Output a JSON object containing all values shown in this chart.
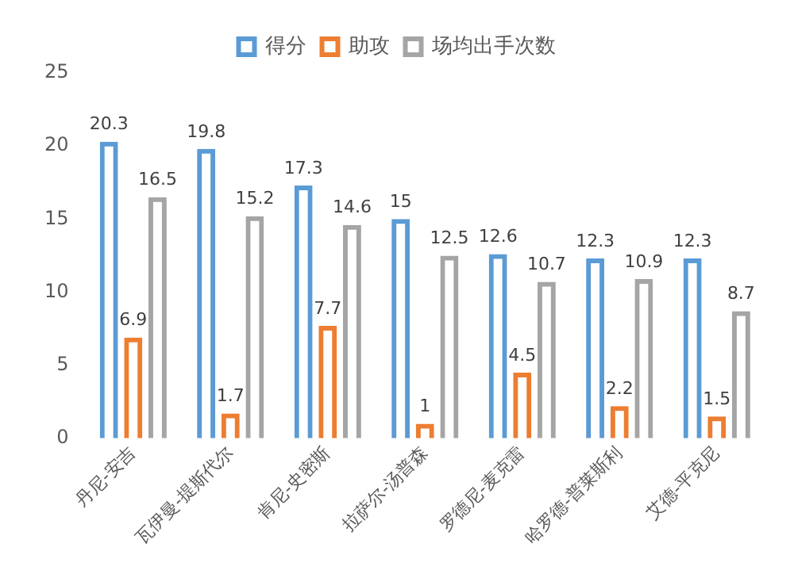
{
  "chart_data": {
    "type": "bar",
    "categories": [
      "丹尼-安吉",
      "瓦伊曼-提斯代尔",
      "肯尼-史密斯",
      "拉萨尔-汤普森",
      "罗德尼-麦克雷",
      "哈罗德-普莱斯利",
      "艾德-平克尼"
    ],
    "series": [
      {
        "name": "得分",
        "color": "#5b9bd5",
        "values": [
          20.3,
          19.8,
          17.3,
          15,
          12.6,
          12.3,
          12.3
        ]
      },
      {
        "name": "助攻",
        "color": "#ed7d31",
        "values": [
          6.9,
          1.7,
          7.7,
          1,
          4.5,
          2.2,
          1.5
        ]
      },
      {
        "name": "场均出手次数",
        "color": "#a5a5a5",
        "values": [
          16.5,
          15.2,
          14.6,
          12.5,
          10.7,
          10.9,
          8.7
        ]
      }
    ],
    "ylim": [
      0,
      25
    ],
    "yticks": [
      0,
      5,
      10,
      15,
      20,
      25
    ],
    "grid": false,
    "legend": "top",
    "data_labels": true
  }
}
